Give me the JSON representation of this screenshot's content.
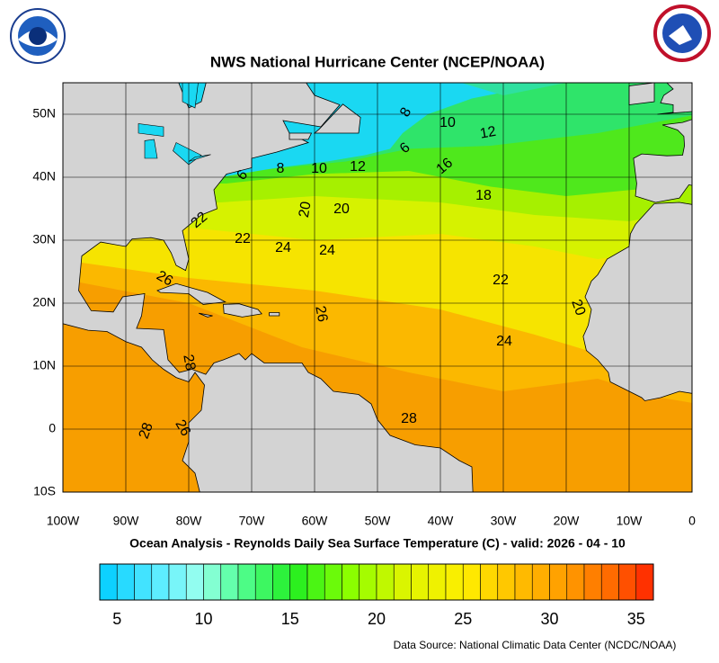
{
  "header": {
    "title": "NWS National Hurricane Center (NCEP/NOAA)"
  },
  "map": {
    "latitude_labels": [
      "50N",
      "40N",
      "30N",
      "20N",
      "10N",
      "0",
      "10S"
    ],
    "longitude_labels": [
      "100W",
      "90W",
      "80W",
      "70W",
      "60W",
      "50W",
      "40W",
      "30W",
      "20W",
      "10W",
      "0"
    ],
    "contour_labels": [
      "8",
      "10",
      "12",
      "6",
      "16",
      "6",
      "8",
      "10",
      "12",
      "18",
      "20",
      "20",
      "22",
      "22",
      "24",
      "24",
      "26",
      "22",
      "20",
      "26",
      "24",
      "28",
      "28",
      "28",
      "26"
    ]
  },
  "caption": "Ocean Analysis - Reynolds Daily Sea Surface Temperature (C) - valid: 2026 - 04 - 10",
  "colorbar": {
    "range": [
      4,
      36
    ],
    "ticks": [
      5,
      10,
      15,
      20,
      25,
      30,
      35
    ]
  },
  "source": "Data Source: National Climatic Data Center (NCDC/NOAA)"
}
